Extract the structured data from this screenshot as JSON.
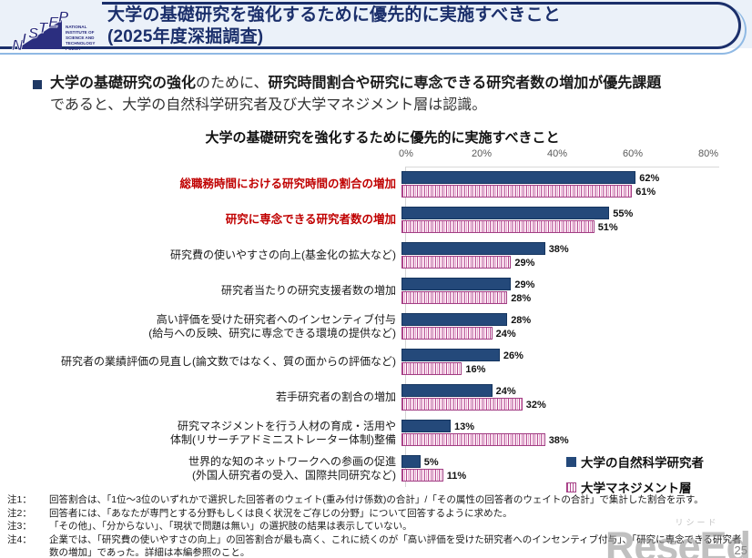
{
  "header": {
    "logo": {
      "acronym": "NISTEP",
      "caption": [
        "NATIONAL",
        "INSTITUTE OF",
        "SCIENCE AND",
        "TECHNOLOGY",
        "POLICY"
      ]
    },
    "title_line1": "大学の基礎研究を強化するために優先的に実施すべきこと",
    "title_line2": "(2025年度深掘調査)"
  },
  "summary": {
    "bold1": "大学の基礎研究の強化",
    "reg1": "のために、",
    "bold2": "研究時間割合や研究に専念できる研究者数の増加が優先課題",
    "reg2": "であると、大学の自然科学研究者及び大学マネジメント層は認識。"
  },
  "chart_data": {
    "type": "bar",
    "orientation": "horizontal",
    "title": "大学の基礎研究を強化するために優先的に実施すべきこと",
    "x_ticks": [
      "0%",
      "20%",
      "40%",
      "60%",
      "80%"
    ],
    "xlim": [
      0,
      80
    ],
    "grid": false,
    "legend_position": "bottom-right",
    "categories": [
      "総職務時間における研究時間の割合の増加",
      "研究に専念できる研究者数の増加",
      "研究費の使いやすさの向上(基金化の拡大など)",
      "研究者当たりの研究支援者数の増加",
      "高い評価を受けた研究者へのインセンティブ付与\n(給与への反映、研究に専念できる環境の提供など)",
      "研究者の業績評価の見直し(論文数ではなく、質の面からの評価など)",
      "若手研究者の割合の増加",
      "研究マネジメントを行う人材の育成・活用や\n体制(リサーチアドミニストレーター体制)整備",
      "世界的な知のネットワークへの参画の促進\n(外国人研究者の受入、国際共同研究など)"
    ],
    "highlighted_categories": [
      0,
      1
    ],
    "series": [
      {
        "name": "大学の自然科学研究者",
        "values": [
          62,
          55,
          38,
          29,
          28,
          26,
          24,
          13,
          5
        ]
      },
      {
        "name": "大学マネジメント層",
        "values": [
          61,
          51,
          29,
          28,
          24,
          16,
          32,
          38,
          11
        ]
      }
    ]
  },
  "notes": [
    {
      "label": "注1：",
      "text": "回答割合は、「1位～3位のいずれかで選択した回答者のウェイト(重み付け係数)の合計」/「その属性の回答者のウェイトの合計」で集計した割合を示す。"
    },
    {
      "label": "注2：",
      "text": "回答者には、「あなたが専門とする分野もしくは良く状況をご存じの分野」について回答するように求めた。"
    },
    {
      "label": "注3：",
      "text": "「その他」、「分からない」、「現状で問題は無い」の選択肢の結果は表示していない。"
    },
    {
      "label": "注4：",
      "text": "企業では、「研究費の使いやすさの向上」の回答割合が最も高く、これに続くのが「高い評価を受けた研究者へのインセンティブ付与」、「研究に専念できる研究者数の増加」であった。詳細は本編参照のこと。"
    }
  ],
  "watermark": {
    "furigana": "リシード",
    "text": "ReseEd",
    "page": "25"
  },
  "colors": {
    "header_navy": "#1B2F6B",
    "accent_light_blue": "#8FB9E4",
    "highlight_red": "#C00000",
    "bar_researchers": "#24497A",
    "bar_management_stripe": "#B3478F"
  }
}
